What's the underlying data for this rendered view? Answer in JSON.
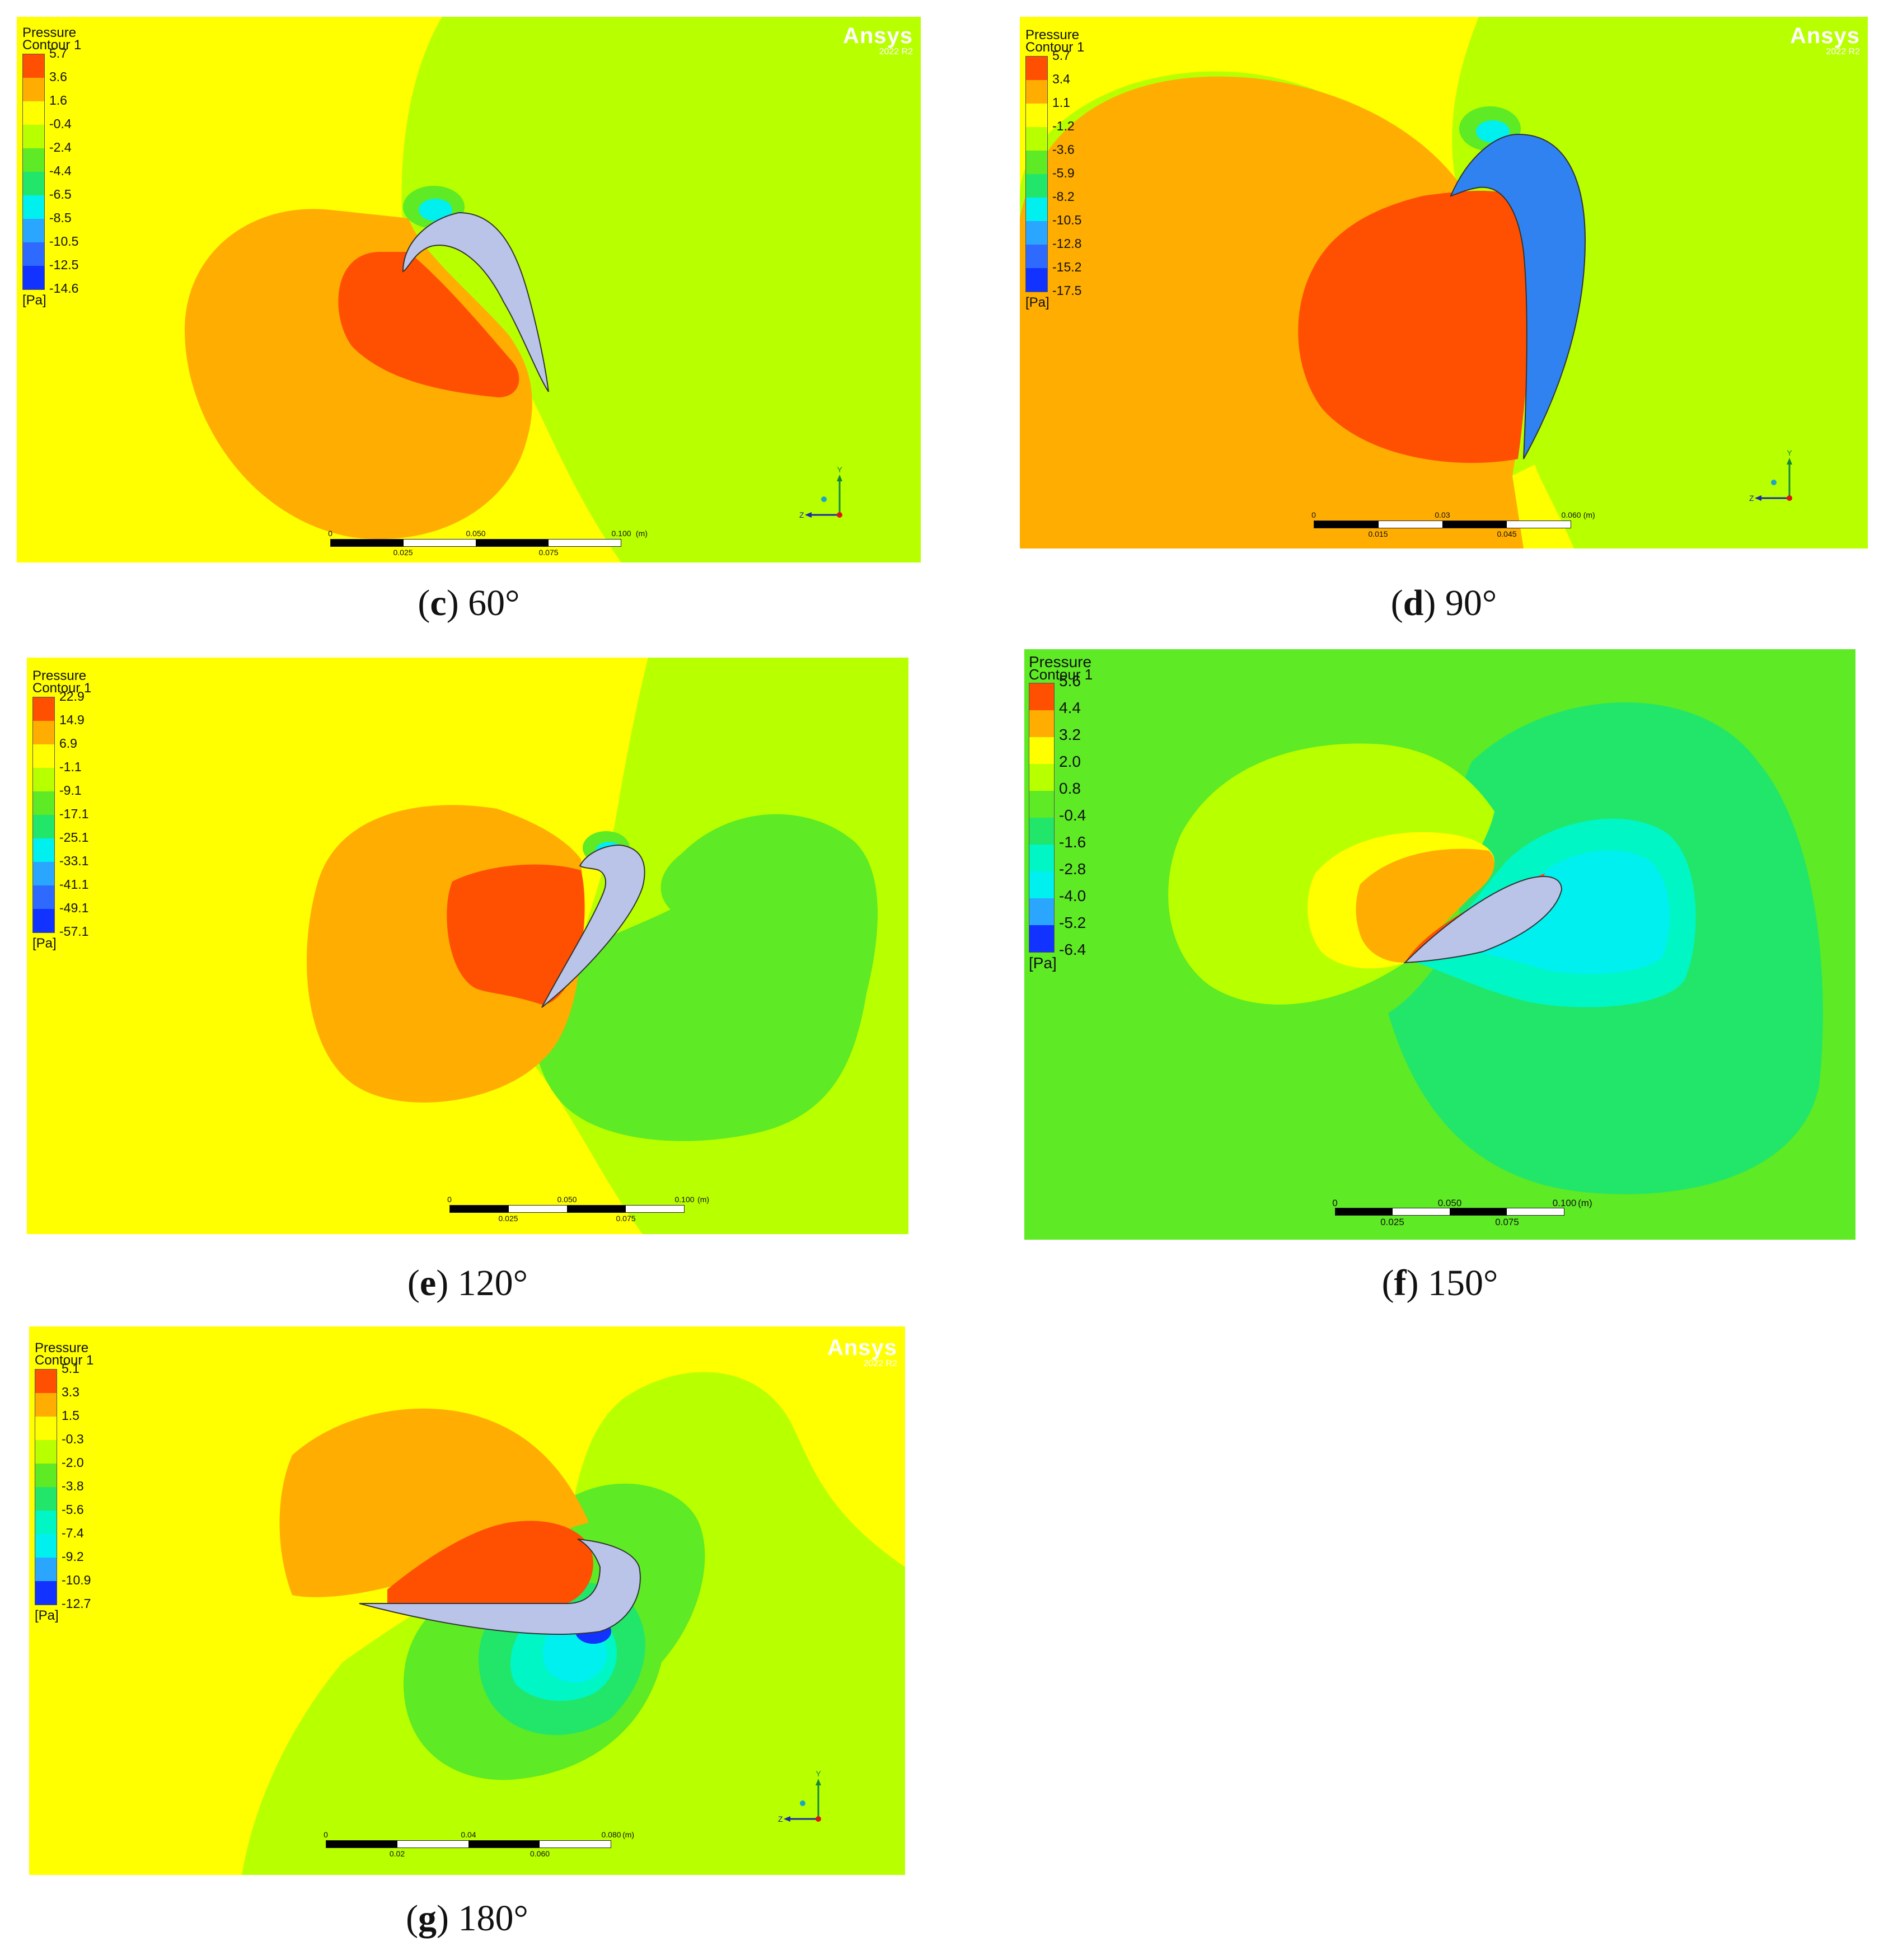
{
  "figure": {
    "panels": [
      {
        "id": "c",
        "caption": {
          "letter": "c",
          "angle": "60°"
        },
        "legend": {
          "title_line1": "Pressure",
          "title_line2": "Contour 1",
          "unit": "[Pa]",
          "levels": [
            "5.7",
            "3.6",
            "1.6",
            "-0.4",
            "-2.4",
            "-4.4",
            "-6.5",
            "-8.5",
            "-10.5",
            "-12.5",
            "-14.6"
          ]
        },
        "logo": {
          "brand": "Ansys",
          "version": "2022 R2"
        },
        "scale": {
          "top": [
            "0",
            "0.050",
            "0.100",
            "(m)"
          ],
          "bottom": [
            "0.025",
            "0.075"
          ]
        },
        "axes": {
          "y": "Y",
          "z": "Z"
        }
      },
      {
        "id": "d",
        "caption": {
          "letter": "d",
          "angle": "90°"
        },
        "legend": {
          "title_line1": "Pressure",
          "title_line2": "Contour 1",
          "unit": "[Pa]",
          "levels": [
            "5.7",
            "3.4",
            "1.1",
            "-1.2",
            "-3.6",
            "-5.9",
            "-8.2",
            "-10.5",
            "-12.8",
            "-15.2",
            "-17.5"
          ]
        },
        "logo": {
          "brand": "Ansys",
          "version": "2022 R2"
        },
        "scale": {
          "top": [
            "0",
            "0.03",
            "0.060",
            "(m)"
          ],
          "bottom": [
            "0.015",
            "0.045"
          ]
        },
        "axes": {
          "y": "Y",
          "z": "Z"
        }
      },
      {
        "id": "e",
        "caption": {
          "letter": "e",
          "angle": "120°"
        },
        "legend": {
          "title_line1": "Pressure",
          "title_line2": "Contour 1",
          "unit": "[Pa]",
          "levels": [
            "22.9",
            "14.9",
            "6.9",
            "-1.1",
            "-9.1",
            "-17.1",
            "-25.1",
            "-33.1",
            "-41.1",
            "-49.1",
            "-57.1"
          ]
        },
        "scale": {
          "top": [
            "0",
            "0.050",
            "0.100",
            "(m)"
          ],
          "bottom": [
            "0.025",
            "0.075"
          ]
        }
      },
      {
        "id": "f",
        "caption": {
          "letter": "f",
          "angle": "150°"
        },
        "legend": {
          "title_line1": "Pressure",
          "title_line2": "Contour 1",
          "unit": "[Pa]",
          "levels": [
            "5.6",
            "4.4",
            "3.2",
            "2.0",
            "0.8",
            "-0.4",
            "-1.6",
            "-2.8",
            "-4.0",
            "-5.2",
            "-6.4"
          ]
        },
        "scale": {
          "top": [
            "0",
            "0.050",
            "0.100",
            "(m)"
          ],
          "bottom": [
            "0.025",
            "0.075"
          ]
        }
      },
      {
        "id": "g",
        "caption": {
          "letter": "g",
          "angle": "180°"
        },
        "legend": {
          "title_line1": "Pressure",
          "title_line2": "Contour 1",
          "unit": "[Pa]",
          "levels": [
            "5.1",
            "3.3",
            "1.5",
            "-0.3",
            "-2.0",
            "-3.8",
            "-5.6",
            "-7.4",
            "-9.2",
            "-10.9",
            "-12.7"
          ]
        },
        "logo": {
          "brand": "Ansys",
          "version": "2022 R2"
        },
        "scale": {
          "top": [
            "0",
            "0.04",
            "0.080",
            "(m)"
          ],
          "bottom": [
            "0.02",
            "0.060"
          ]
        },
        "axes": {
          "y": "Y",
          "z": "Z"
        }
      }
    ],
    "colormap": [
      "#ff4f00",
      "#ffad00",
      "#ffff00",
      "#b8ff00",
      "#5eea24",
      "#22e66a",
      "#00f6c4",
      "#00f0f0",
      "#2aa6ff",
      "#2f6aff",
      "#1233ff"
    ]
  }
}
